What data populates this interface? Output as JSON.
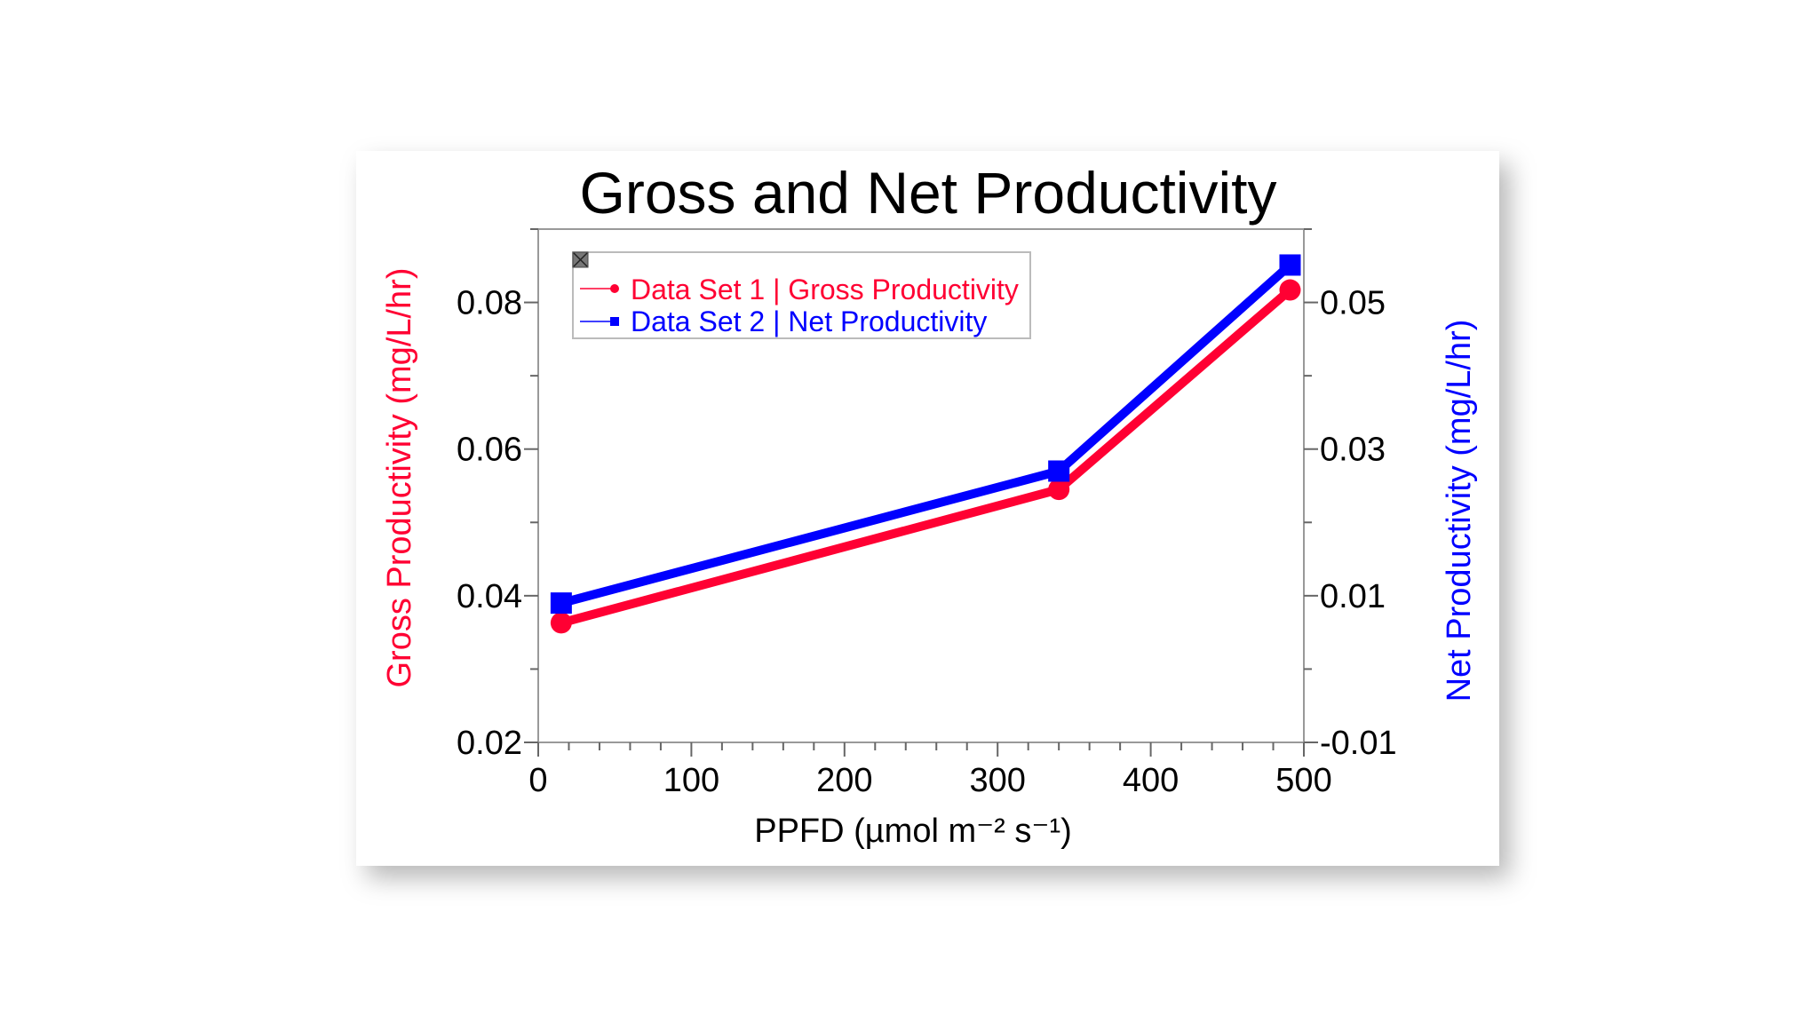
{
  "chart_data": {
    "type": "line",
    "title": "Gross and Net Productivity",
    "xlabel": "PPFD (µmol m⁻² s⁻¹)",
    "ylabel_left": "Gross Productivity (mg/L/hr)",
    "ylabel_right": "Net Productivity (mg/L/hr)",
    "xlim": [
      0,
      500
    ],
    "ylim_left": [
      0.02,
      0.09
    ],
    "ylim_right": [
      -0.01,
      0.06
    ],
    "x_ticks": [
      "0",
      "100",
      "200",
      "300",
      "400",
      "500"
    ],
    "y_ticks_left": [
      "0.02",
      "0.04",
      "0.06",
      "0.08"
    ],
    "y_ticks_right": [
      "-0.01",
      "0.01",
      "0.03",
      "0.05"
    ],
    "grid": false,
    "legend_placement": "top-left",
    "series": [
      {
        "name": "Data Set 1 | Gross Productivity",
        "axis": "left",
        "color": "#ff0033",
        "marker": "circle",
        "x": [
          15,
          340,
          491
        ],
        "y": [
          0.0363,
          0.0545,
          0.0817
        ]
      },
      {
        "name": "Data Set 2 | Net Productivity",
        "axis": "right",
        "color": "#0000ff",
        "marker": "square",
        "x": [
          15,
          340,
          491
        ],
        "y": [
          0.009,
          0.027,
          0.0551
        ]
      }
    ]
  }
}
